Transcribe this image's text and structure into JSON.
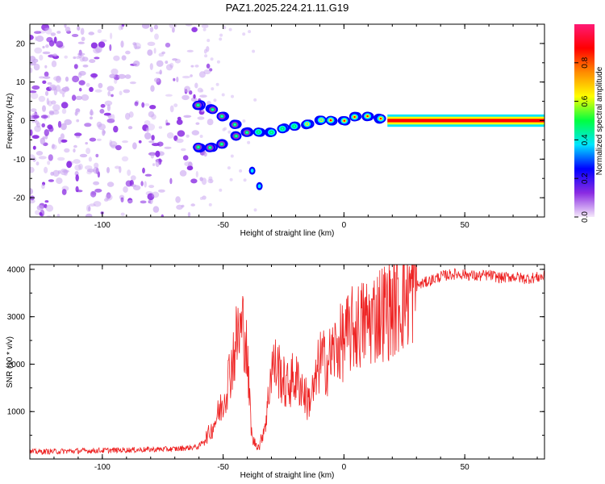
{
  "title": "PAZ1.2025.224.21.11.G19",
  "colormap": [
    "#f5e9fb",
    "#8a2be2",
    "#0000ff",
    "#00e5ff",
    "#00ff40",
    "#ffff00",
    "#ff8c00",
    "#ff0000",
    "#ff1a75"
  ],
  "line_color": "#ee2222",
  "chart_data": [
    {
      "type": "heatmap",
      "xlabel": "Height of straight line (km)",
      "ylabel": "Frequency (Hz)",
      "xlim": [
        -130,
        83
      ],
      "ylim": [
        -25,
        25
      ],
      "xticks": [
        -100,
        -50,
        0,
        50
      ],
      "yticks": [
        20,
        10,
        0,
        -10,
        -20
      ],
      "grid": false,
      "colorbar": {
        "label": "Normalized spectral amplitude",
        "range": [
          0,
          1
        ],
        "ticks": [
          0.0,
          0.2,
          0.4,
          0.6,
          0.8
        ]
      },
      "ridge": [
        {
          "x": -60,
          "y": 4
        },
        {
          "x": -55,
          "y": 3
        },
        {
          "x": -50,
          "y": 1
        },
        {
          "x": -45,
          "y": -1
        },
        {
          "x": -60,
          "y": -7
        },
        {
          "x": -55,
          "y": -7
        },
        {
          "x": -50,
          "y": -6
        },
        {
          "x": -45,
          "y": -4
        },
        {
          "x": -40,
          "y": -3
        },
        {
          "x": -35,
          "y": -3
        },
        {
          "x": -30,
          "y": -3
        },
        {
          "x": -25,
          "y": -2
        },
        {
          "x": -20,
          "y": -1.5
        },
        {
          "x": -15,
          "y": -1
        },
        {
          "x": -10,
          "y": 0
        },
        {
          "x": -5,
          "y": 0
        },
        {
          "x": 0,
          "y": 0
        },
        {
          "x": 5,
          "y": 1
        },
        {
          "x": 10,
          "y": 1
        },
        {
          "x": 15,
          "y": 0.5
        },
        {
          "x": 20,
          "y": 0
        },
        {
          "x": 30,
          "y": 0
        },
        {
          "x": 50,
          "y": 0
        },
        {
          "x": 83,
          "y": 0
        }
      ],
      "outliers": [
        {
          "x": -38,
          "y": -13
        },
        {
          "x": -35,
          "y": -17
        }
      ]
    },
    {
      "type": "line",
      "xlabel": "Height of straight line (km)",
      "ylabel": "SNR (10 * v/v)",
      "xlim": [
        -130,
        83
      ],
      "ylim": [
        0,
        4100
      ],
      "xticks": [
        -100,
        -50,
        0,
        50
      ],
      "yticks": [
        1000,
        2000,
        3000,
        4000
      ],
      "grid": false,
      "series": [
        {
          "x": [
            -130,
            -120,
            -110,
            -100,
            -90,
            -80,
            -70,
            -60,
            -55,
            -50,
            -47,
            -44,
            -41,
            -38,
            -35,
            -32,
            -30,
            -27,
            -24,
            -21,
            -18,
            -15,
            -12,
            -10,
            -7,
            -4,
            0,
            3,
            6,
            10,
            15,
            20,
            25,
            30,
            35,
            40,
            45,
            50,
            55,
            60,
            65,
            70,
            75,
            83
          ],
          "y": [
            150,
            160,
            170,
            180,
            190,
            200,
            210,
            260,
            600,
            1200,
            1900,
            2600,
            2800,
            400,
            250,
            900,
            2000,
            1900,
            1500,
            1700,
            1600,
            1200,
            1500,
            2100,
            2000,
            2300,
            2500,
            2700,
            2800,
            2900,
            3100,
            3200,
            3400,
            3650,
            3750,
            3850,
            3900,
            3900,
            3850,
            3880,
            3820,
            3850,
            3800,
            3850
          ]
        }
      ]
    }
  ]
}
